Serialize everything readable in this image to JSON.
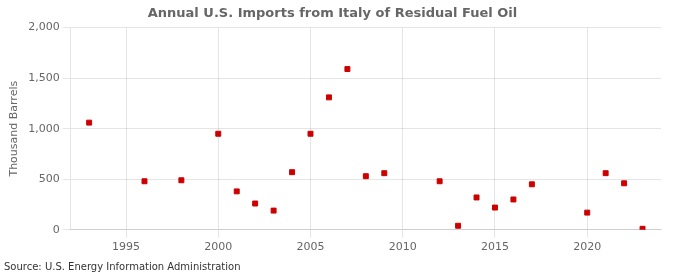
{
  "chart_data": {
    "type": "scatter",
    "title": "Annual U.S. Imports from Italy of Residual Fuel Oil",
    "ylabel": "Thousand Barrels",
    "annotation": "Source: U.S. Energy Information Administration",
    "x": [
      1993,
      1996,
      1998,
      2000,
      2001,
      2002,
      2003,
      2004,
      2005,
      2006,
      2007,
      2008,
      2009,
      2012,
      2013,
      2014,
      2015,
      2016,
      2017,
      2020,
      2021,
      2022,
      2023
    ],
    "values": [
      1060,
      480,
      490,
      950,
      380,
      260,
      190,
      570,
      950,
      1310,
      1590,
      530,
      560,
      480,
      40,
      320,
      220,
      300,
      450,
      170,
      560,
      460,
      10
    ],
    "color": "#cc0000",
    "marker": "square",
    "xlim": [
      1992,
      2024
    ],
    "xticks": [
      1995,
      2000,
      2005,
      2010,
      2015,
      2020
    ],
    "ylim": [
      0,
      2000
    ],
    "yticks": [
      0,
      500,
      {
        "value": 1000,
        "label": "1,000"
      },
      {
        "value": 1500,
        "label": "1,500"
      },
      {
        "value": 2000,
        "label": "2,000"
      }
    ],
    "grid": true
  }
}
